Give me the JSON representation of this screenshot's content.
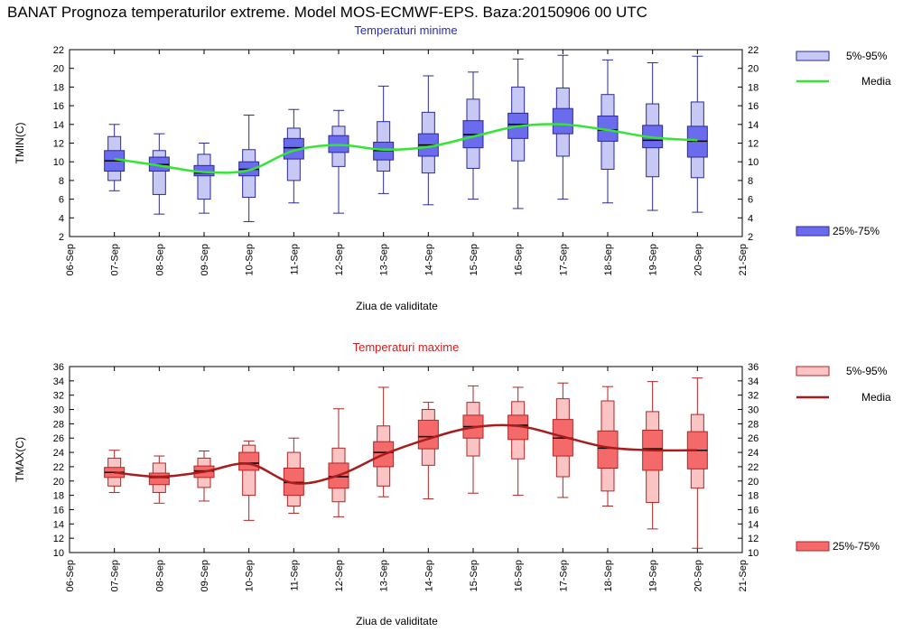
{
  "title": "BANAT  Prognoza temperaturilor extreme.  Model MOS-ECMWF-EPS. Baza:20150906 00 UTC",
  "chart_data": [
    {
      "type": "box",
      "title": "Temperaturi minime",
      "title_color": "#2b2bbd",
      "xlabel": "Ziua de validitate",
      "ylabel": "TMIN(C)",
      "ylim": [
        2,
        22
      ],
      "yticks": [
        2,
        4,
        6,
        8,
        10,
        12,
        14,
        16,
        18,
        20,
        22
      ],
      "x_ticks": [
        "06-Sep",
        "07-Sep",
        "08-Sep",
        "09-Sep",
        "10-Sep",
        "11-Sep",
        "12-Sep",
        "13-Sep",
        "14-Sep",
        "15-Sep",
        "16-Sep",
        "17-Sep",
        "18-Sep",
        "19-Sep",
        "20-Sep",
        "21-Sep"
      ],
      "categories": [
        "07-Sep",
        "08-Sep",
        "09-Sep",
        "10-Sep",
        "11-Sep",
        "12-Sep",
        "13-Sep",
        "14-Sep",
        "15-Sep",
        "16-Sep",
        "17-Sep",
        "18-Sep",
        "19-Sep",
        "20-Sep"
      ],
      "p5": [
        6.9,
        4.4,
        4.5,
        3.6,
        5.6,
        4.5,
        6.6,
        5.4,
        6.0,
        5.0,
        6.0,
        5.6,
        4.8,
        4.6
      ],
      "p95": [
        14.0,
        13.0,
        12.0,
        15.0,
        15.6,
        15.5,
        18.1,
        19.2,
        19.6,
        21.0,
        21.4,
        20.9,
        20.6,
        21.3
      ],
      "p25": [
        9.0,
        9.0,
        8.5,
        8.5,
        10.3,
        11.0,
        10.2,
        10.6,
        11.5,
        12.5,
        13.0,
        12.2,
        11.5,
        10.5
      ],
      "p75": [
        11.2,
        10.5,
        9.6,
        10.0,
        12.5,
        12.8,
        12.1,
        13.0,
        14.4,
        15.2,
        15.7,
        14.9,
        13.9,
        13.8
      ],
      "p10": [
        8.0,
        6.5,
        6.0,
        6.2,
        8.0,
        9.5,
        9.0,
        8.8,
        9.3,
        10.1,
        10.6,
        9.2,
        8.4,
        8.3
      ],
      "p90": [
        12.7,
        11.2,
        10.8,
        11.3,
        13.6,
        13.8,
        14.3,
        15.3,
        16.7,
        18.0,
        17.9,
        17.2,
        16.2,
        16.4
      ],
      "median": [
        10.1,
        9.7,
        8.8,
        9.2,
        11.5,
        11.8,
        11.2,
        11.8,
        12.9,
        14.0,
        14.0,
        13.4,
        12.3,
        12.2
      ],
      "mean": [
        10.3,
        9.6,
        8.9,
        9.1,
        11.2,
        11.8,
        11.3,
        11.6,
        12.7,
        13.8,
        14.0,
        13.4,
        12.6,
        12.3
      ],
      "mean_color": "#33e633",
      "box_outer_color": "#c8c8f4",
      "box_inner_color": "#6b6bed",
      "edge_color": "#2a2a9a",
      "legend": {
        "outer": "5%-95%",
        "mean": "Media",
        "inner": "25%-75%"
      }
    },
    {
      "type": "box",
      "title": "Temperaturi maxime",
      "title_color": "#d42020",
      "xlabel": "Ziua de validitate",
      "ylabel": "TMAX(C)",
      "ylim": [
        10,
        36
      ],
      "yticks": [
        10,
        12,
        14,
        16,
        18,
        20,
        22,
        24,
        26,
        28,
        30,
        32,
        34,
        36
      ],
      "x_ticks": [
        "06-Sep",
        "07-Sep",
        "08-Sep",
        "09-Sep",
        "10-Sep",
        "11-Sep",
        "12-Sep",
        "13-Sep",
        "14-Sep",
        "15-Sep",
        "16-Sep",
        "17-Sep",
        "18-Sep",
        "19-Sep",
        "20-Sep",
        "21-Sep"
      ],
      "categories": [
        "07-Sep",
        "08-Sep",
        "09-Sep",
        "10-Sep",
        "11-Sep",
        "12-Sep",
        "13-Sep",
        "14-Sep",
        "15-Sep",
        "16-Sep",
        "17-Sep",
        "18-Sep",
        "19-Sep",
        "20-Sep"
      ],
      "p5": [
        18.4,
        16.9,
        17.2,
        14.5,
        15.5,
        15.0,
        17.8,
        17.5,
        18.3,
        18.0,
        17.7,
        16.5,
        13.3,
        10.6
      ],
      "p95": [
        24.3,
        23.5,
        24.2,
        25.6,
        26.0,
        30.1,
        33.1,
        31.0,
        33.3,
        33.1,
        33.7,
        33.2,
        33.9,
        34.4
      ],
      "p25": [
        20.5,
        19.5,
        20.5,
        21.5,
        18.0,
        19.0,
        22.0,
        24.5,
        26.0,
        25.8,
        23.5,
        21.8,
        21.5,
        21.7
      ],
      "p75": [
        21.9,
        21.1,
        22.1,
        24.0,
        21.8,
        22.5,
        25.5,
        28.5,
        29.2,
        29.2,
        28.6,
        27.0,
        27.1,
        26.9
      ],
      "p10": [
        19.3,
        18.4,
        19.1,
        18.0,
        16.5,
        17.1,
        19.3,
        22.2,
        23.5,
        23.1,
        20.6,
        18.6,
        17.0,
        19.0
      ],
      "p90": [
        23.2,
        22.5,
        23.2,
        25.0,
        24.0,
        24.6,
        27.7,
        30.0,
        31.0,
        31.1,
        31.5,
        31.2,
        29.7,
        29.3
      ],
      "median": [
        21.2,
        20.5,
        21.4,
        22.5,
        19.8,
        20.6,
        24.0,
        26.2,
        27.6,
        27.8,
        26.0,
        24.6,
        24.5,
        24.3
      ],
      "mean": [
        21.2,
        20.6,
        21.3,
        22.4,
        19.7,
        20.8,
        23.7,
        25.9,
        27.5,
        27.7,
        26.2,
        24.7,
        24.3,
        24.3
      ],
      "mean_color": "#a81c1c",
      "box_outer_color": "#fbc4c4",
      "box_inner_color": "#f46a6a",
      "edge_color": "#b02424",
      "legend": {
        "outer": "5%-95%",
        "mean": "Media",
        "inner": "25%-75%"
      }
    }
  ]
}
